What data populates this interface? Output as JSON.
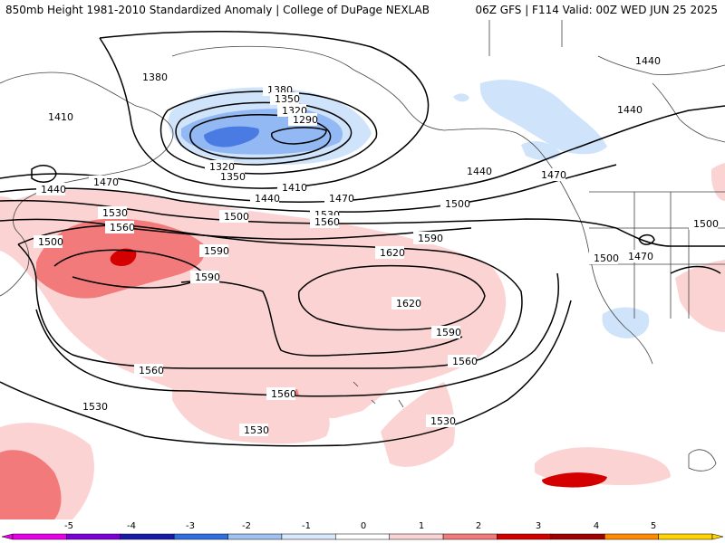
{
  "header": {
    "title_left": "850mb Height 1981-2010 Standardized Anomaly | College of DuPage NEXLAB",
    "title_right": "06Z GFS | F114 Valid: 00Z WED JUN 25 2025"
  },
  "map": {
    "contour_labels": [
      "1380",
      "1410",
      "1440",
      "1470",
      "1500",
      "1530",
      "1560",
      "1590",
      "1620",
      "1350",
      "1320",
      "1290"
    ],
    "anomaly_colors": {
      "neg1": "#cfe3fb",
      "neg2": "#92b9f3",
      "neg3": "#4a7be3",
      "pos1": "#fbd3d3",
      "pos2": "#f27a7a",
      "pos3": "#d40000"
    }
  },
  "colorbar": {
    "ticks": [
      "-5",
      "-4",
      "-3",
      "-2",
      "-1",
      "0",
      "1",
      "2",
      "3",
      "4",
      "5"
    ],
    "colors": [
      "#e800e8",
      "#7a00d8",
      "#1a1aa8",
      "#2f6fe0",
      "#9fc2f3",
      "#d7e8fb",
      "#ffffff",
      "#fbd3d3",
      "#f27a7a",
      "#d40000",
      "#a00000",
      "#ff8c00",
      "#ffd400"
    ]
  }
}
